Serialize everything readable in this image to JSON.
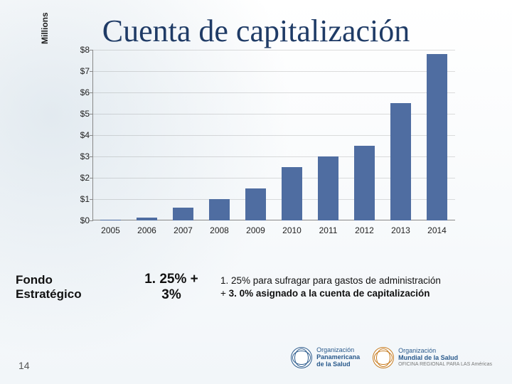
{
  "title": "Cuenta de capitalización",
  "chart": {
    "type": "bar",
    "y_axis_title": "Millions",
    "categories": [
      "2005",
      "2006",
      "2007",
      "2008",
      "2009",
      "2010",
      "2011",
      "2012",
      "2013",
      "2014"
    ],
    "values": [
      0.05,
      0.15,
      0.6,
      1.0,
      1.5,
      2.5,
      3.0,
      3.5,
      5.5,
      7.8
    ],
    "bar_color": "#4f6da1",
    "ylim": [
      0,
      8
    ],
    "y_ticks": [
      "$0",
      "$1",
      "$2",
      "$3",
      "$4",
      "$5",
      "$6",
      "$7",
      "$8"
    ],
    "grid_color": "rgba(120,120,120,0.25)",
    "axis_color": "#888",
    "label_color": "#222",
    "label_fontsize": 12,
    "bar_width_ratio": 0.55
  },
  "info": {
    "fondo_line1": "Fondo",
    "fondo_line2": "Estratégico",
    "pct_line1": "1. 25% +",
    "pct_line2": "3%",
    "desc_line1": "1. 25%  para sufragar  para gastos de administración",
    "desc_line2_prefix": "+ ",
    "desc_line2_bold": "3. 0% asignado a la cuenta de capitalización"
  },
  "page_number": "14",
  "logos": {
    "paho_line1": "Organización",
    "paho_line2": "Panamericana",
    "paho_line3": "de la Salud",
    "who_line1": "Organización",
    "who_line2": "Mundial de la Salud",
    "who_sub": "OFICINA REGIONAL PARA LAS Américas"
  },
  "colors": {
    "title_color": "#1f3b66",
    "text_color": "#111",
    "logo_blue": "#2a5a8c",
    "logo_orange": "#c67a1e"
  }
}
